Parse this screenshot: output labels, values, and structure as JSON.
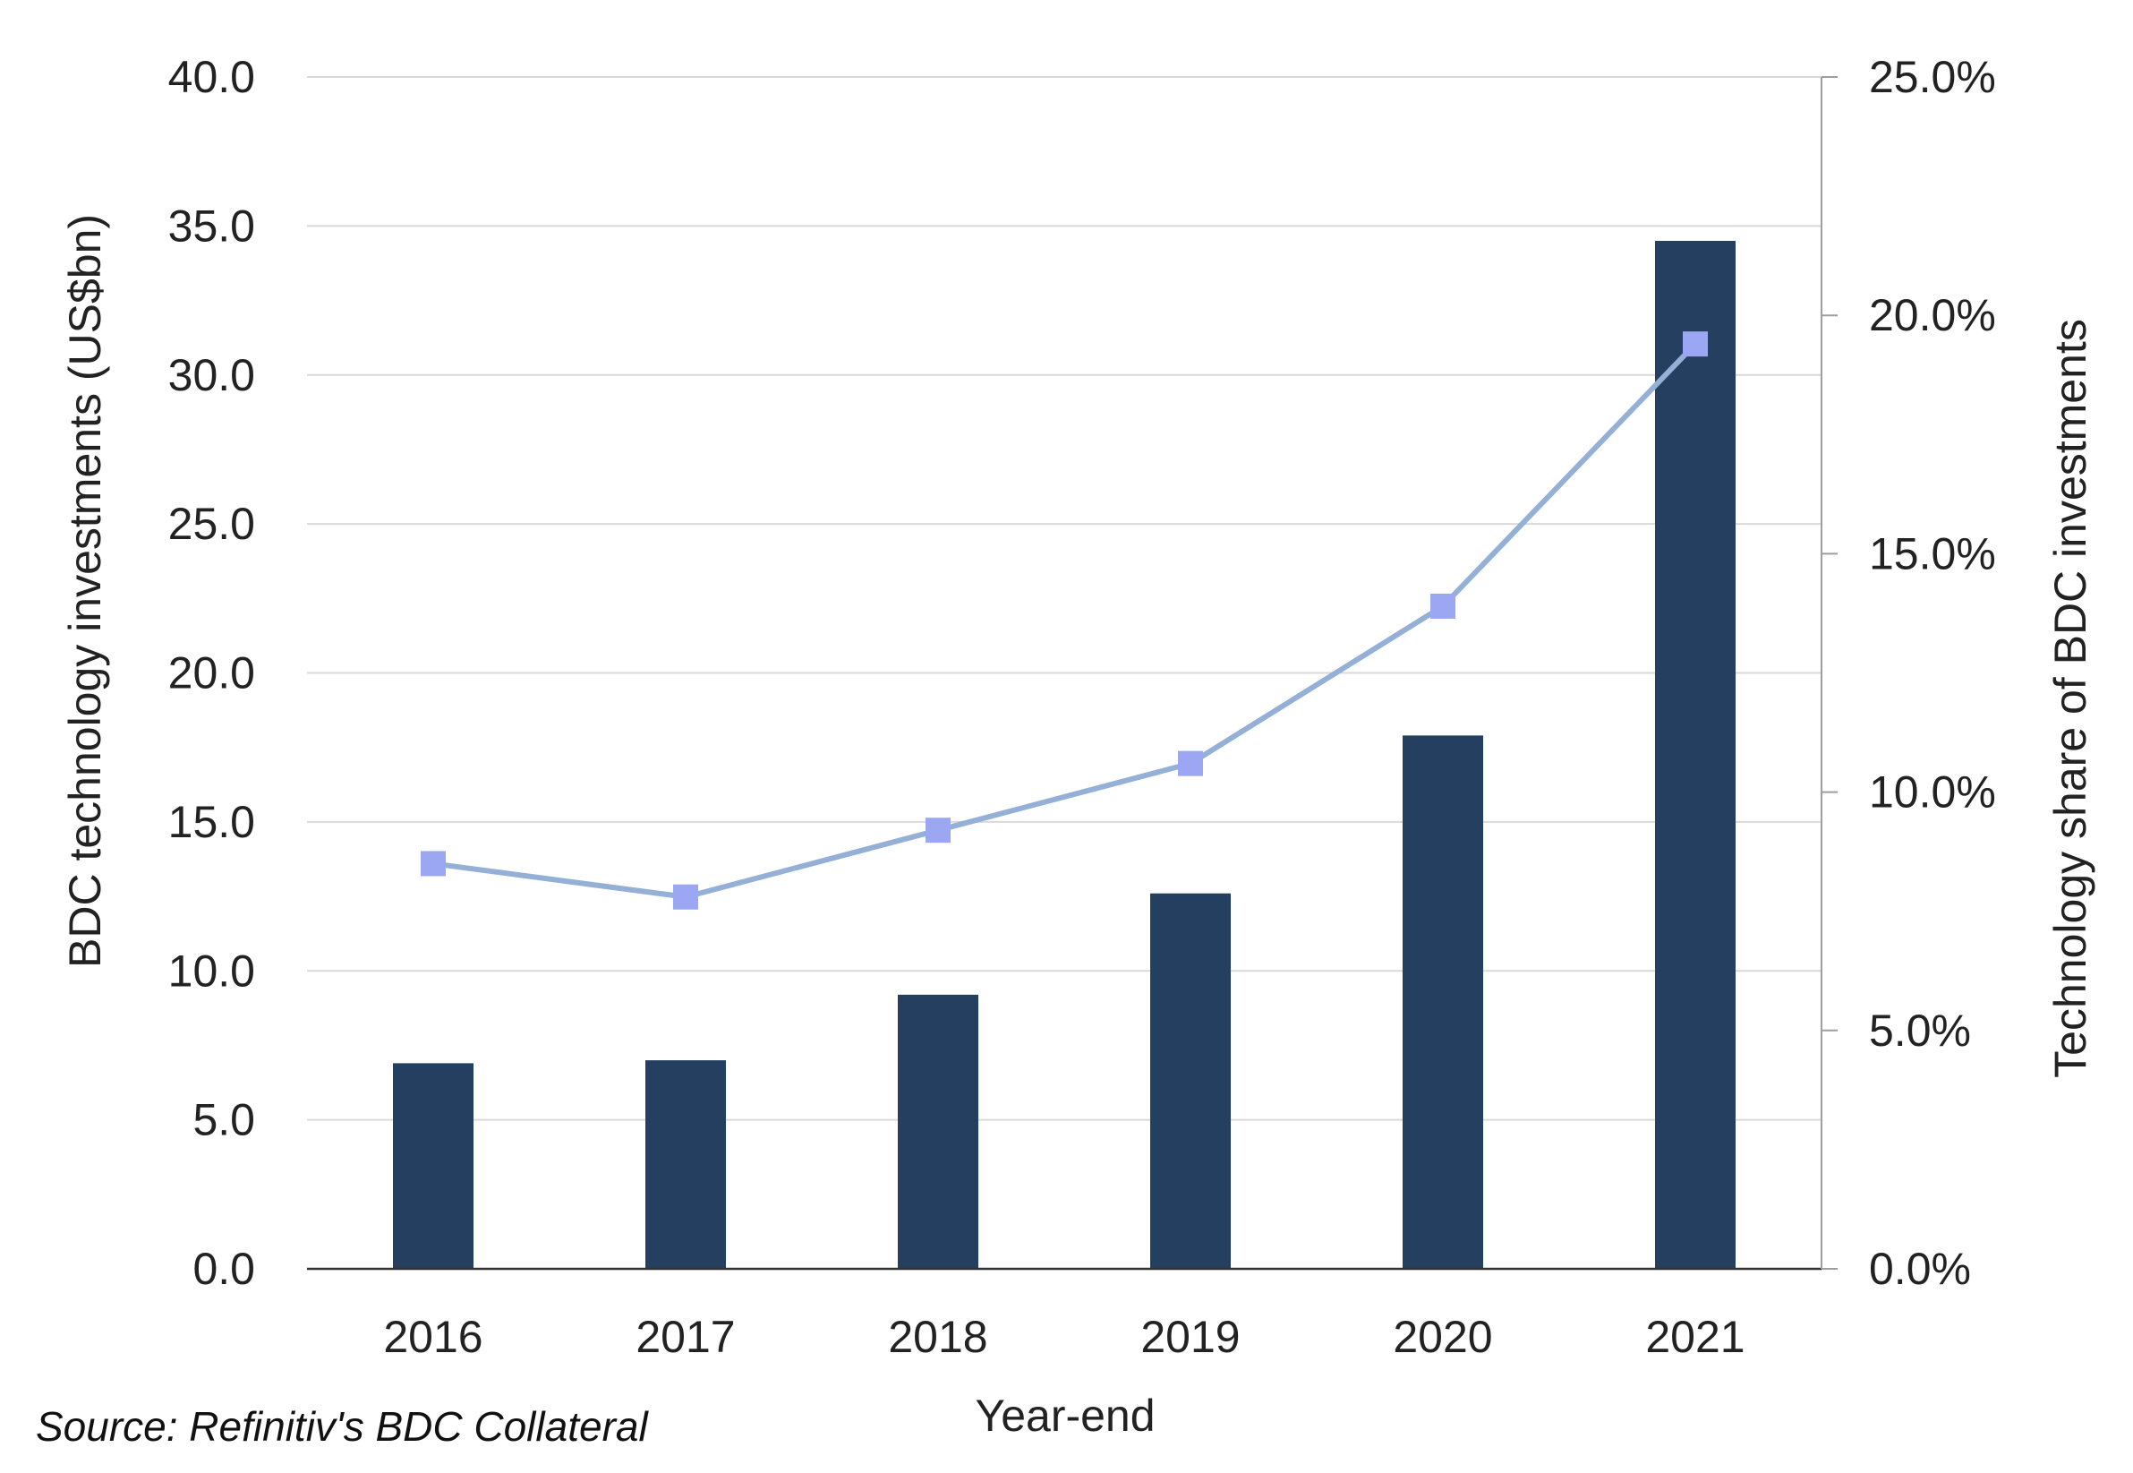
{
  "chart_data": {
    "type": "bar",
    "categories": [
      "2016",
      "2017",
      "2018",
      "2019",
      "2020",
      "2021"
    ],
    "title": "",
    "xlabel": "Year-end",
    "ylabel": "BDC technology investments (US$bn)",
    "ylabel_right": "Technology share of BDC investments",
    "ylim": [
      0,
      40
    ],
    "ylim_right": [
      0,
      0.25
    ],
    "yticks": [
      "0.0",
      "5.0",
      "10.0",
      "15.0",
      "20.0",
      "25.0",
      "30.0",
      "35.0",
      "40.0"
    ],
    "yticks_right": [
      "0.0%",
      "5.0%",
      "10.0%",
      "15.0%",
      "20.0%",
      "25.0%"
    ],
    "grid": true,
    "legend": "none",
    "series": [
      {
        "type": "bar",
        "axis": "left",
        "color": "#243f5f",
        "values": [
          6.9,
          7.0,
          9.2,
          12.6,
          17.9,
          34.5
        ]
      },
      {
        "type": "line",
        "axis": "right",
        "line_color": "#94b0d6",
        "marker_color": "#9ca7f4",
        "marker": "square",
        "values": [
          0.085,
          0.078,
          0.092,
          0.106,
          0.139,
          0.194
        ]
      }
    ]
  },
  "footer": {
    "source": "Source: Refinitiv's BDC Collateral"
  }
}
